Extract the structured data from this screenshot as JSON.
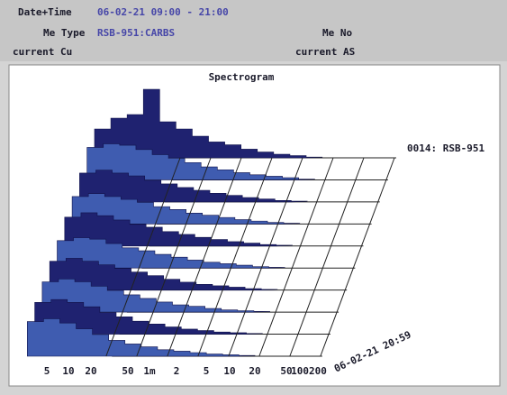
{
  "header": {
    "date_time_label": "Date+Time",
    "date_time": "06-02-21 09:00 - 21:00",
    "me_type_label": "Me Type",
    "me_type": "RSB-951:CARBS",
    "me_no_label": "Me No",
    "current_left": "current Cu",
    "current_right": "current AS"
  },
  "chart": {
    "title": "Spectrogram",
    "x_labels": [
      "5",
      "10",
      "20",
      "50",
      "1m",
      "2",
      "5",
      "10",
      "20",
      "50",
      "100200"
    ],
    "trace_labels": [
      "0014: RSB-951",
      "06-02-21 20:59"
    ],
    "traces": [
      {
        "values": [
          40,
          55,
          60,
          95,
          50,
          40,
          30,
          22,
          18,
          12,
          8,
          5,
          3,
          1
        ]
      },
      {
        "values": [
          45,
          50,
          48,
          42,
          35,
          30,
          24,
          18,
          14,
          10,
          7,
          5,
          3,
          1
        ]
      },
      {
        "values": [
          40,
          44,
          40,
          36,
          30,
          25,
          20,
          16,
          12,
          9,
          6,
          4,
          2,
          1
        ]
      },
      {
        "values": [
          38,
          42,
          38,
          34,
          30,
          24,
          20,
          15,
          12,
          9,
          6,
          4,
          2,
          1
        ]
      },
      {
        "values": [
          40,
          46,
          42,
          36,
          30,
          26,
          20,
          16,
          12,
          9,
          6,
          4,
          2,
          1
        ]
      },
      {
        "values": [
          38,
          42,
          40,
          34,
          28,
          24,
          19,
          15,
          11,
          8,
          6,
          4,
          2,
          1
        ]
      },
      {
        "values": [
          40,
          44,
          40,
          35,
          30,
          25,
          20,
          15,
          11,
          8,
          6,
          4,
          2,
          1
        ]
      },
      {
        "values": [
          42,
          46,
          42,
          36,
          30,
          24,
          19,
          14,
          10,
          8,
          5,
          3,
          2,
          1
        ]
      },
      {
        "values": [
          44,
          48,
          44,
          38,
          30,
          24,
          18,
          14,
          10,
          7,
          5,
          3,
          2,
          1
        ]
      },
      {
        "values": [
          48,
          52,
          46,
          38,
          30,
          22,
          17,
          13,
          9,
          7,
          5,
          3,
          2,
          1
        ]
      }
    ]
  }
}
